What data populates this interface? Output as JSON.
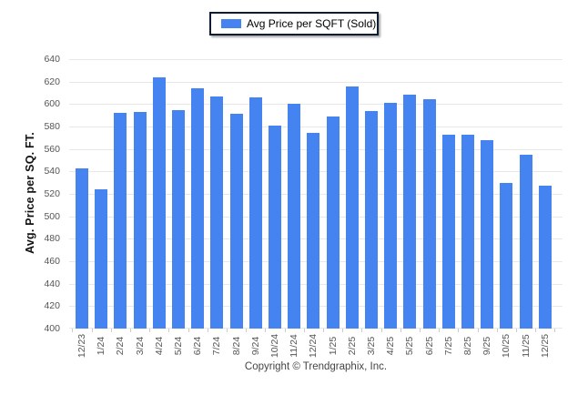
{
  "legend": {
    "label": "Avg Price per SQFT (Sold)"
  },
  "footer": {
    "copyright": "Copyright © Trendgraphix, Inc."
  },
  "chart_data": {
    "type": "bar",
    "title": "",
    "categories": [
      "12/23",
      "1/24",
      "2/24",
      "3/24",
      "4/24",
      "5/24",
      "6/24",
      "7/24",
      "8/24",
      "9/24",
      "10/24",
      "11/24",
      "12/24",
      "1/25",
      "2/25",
      "3/25",
      "4/25",
      "5/25",
      "6/25",
      "7/25",
      "8/25",
      "9/25",
      "10/25",
      "11/25",
      "12/25"
    ],
    "values": [
      543,
      524,
      592,
      593,
      624,
      595,
      614,
      607,
      591,
      606,
      581,
      600,
      574,
      589,
      616,
      594,
      601,
      608,
      604,
      573,
      573,
      568,
      530,
      555,
      527
    ],
    "xlabel": "",
    "ylabel": "Avg. Price per SQ. FT.",
    "ylim": [
      400,
      640
    ],
    "ytick_step": 20,
    "grid": true,
    "legend": [
      "Avg Price per SQFT (Sold)"
    ],
    "legend_position": "top-center",
    "colors": {
      "bar": "#4584F0",
      "grid": "#e8e8e8",
      "tick_label": "#555555",
      "axis_title": "#111111",
      "legend_border": "#101c33",
      "copyright": "#444444"
    }
  }
}
